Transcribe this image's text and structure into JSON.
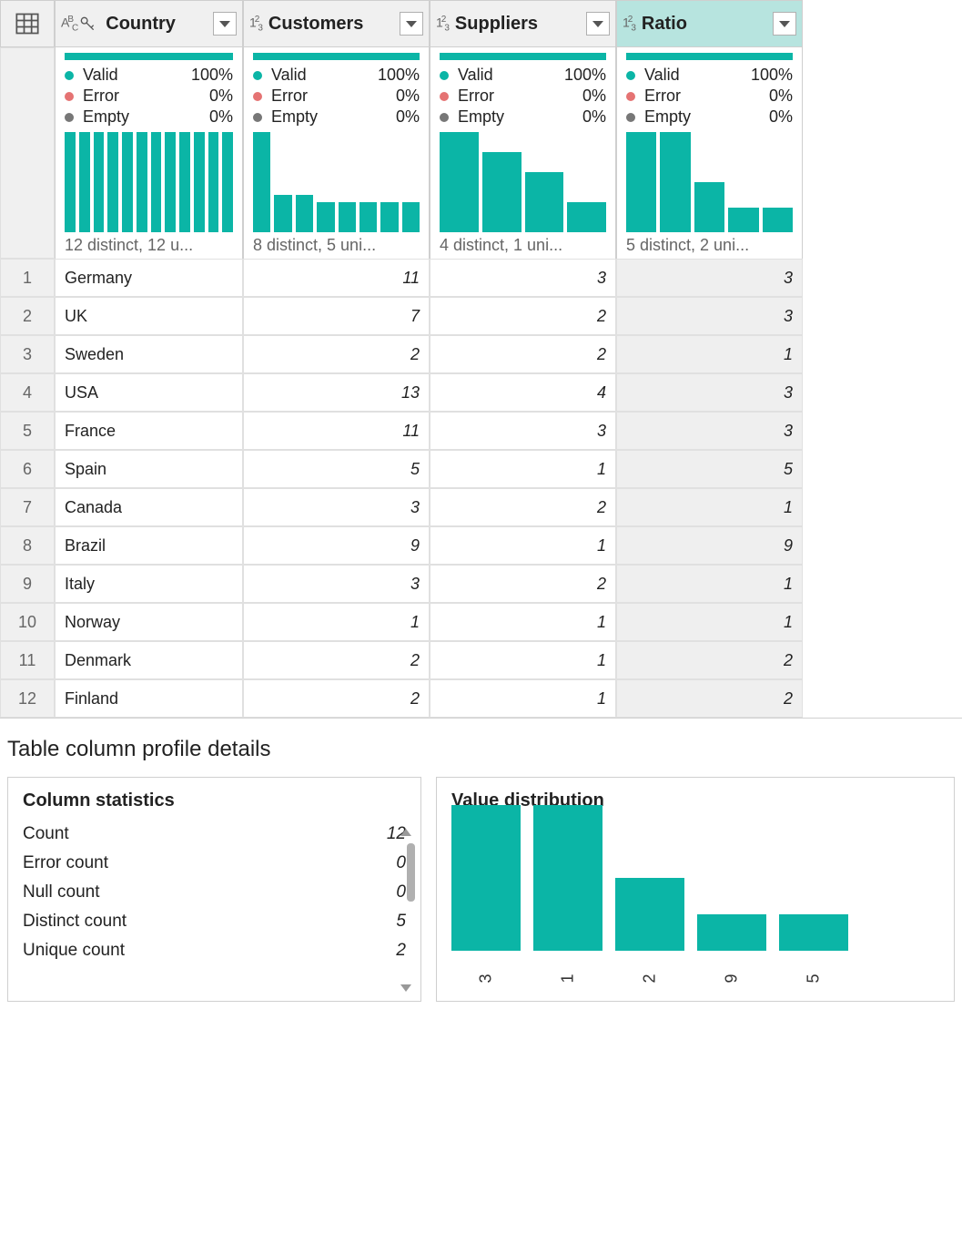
{
  "colors": {
    "accent": "#0bb5a6",
    "header_bg": "#f0f0f0",
    "header_selected_bg": "#b7e4df",
    "cell_selected_bg": "#efefef",
    "border": "#cfcfcf",
    "error_dot": "#e57373",
    "empty_dot": "#777777"
  },
  "columns": [
    {
      "name": "Country",
      "type": "text-key",
      "selected": false,
      "quality": {
        "valid_label": "Valid",
        "valid_pct": "100%",
        "error_label": "Error",
        "error_pct": "0%",
        "empty_label": "Empty",
        "empty_pct": "0%"
      },
      "mini_bars": [
        100,
        100,
        100,
        100,
        100,
        100,
        100,
        100,
        100,
        100,
        100,
        100
      ],
      "distinct_text": "12 distinct, 12 u..."
    },
    {
      "name": "Customers",
      "type": "number",
      "selected": false,
      "quality": {
        "valid_label": "Valid",
        "valid_pct": "100%",
        "error_label": "Error",
        "error_pct": "0%",
        "empty_label": "Empty",
        "empty_pct": "0%"
      },
      "mini_bars": [
        100,
        37,
        37,
        30,
        30,
        30,
        30,
        30
      ],
      "distinct_text": "8 distinct, 5 uni..."
    },
    {
      "name": "Suppliers",
      "type": "number",
      "selected": false,
      "quality": {
        "valid_label": "Valid",
        "valid_pct": "100%",
        "error_label": "Error",
        "error_pct": "0%",
        "empty_label": "Empty",
        "empty_pct": "0%"
      },
      "mini_bars": [
        100,
        80,
        60,
        30
      ],
      "distinct_text": "4 distinct, 1 uni..."
    },
    {
      "name": "Ratio",
      "type": "number",
      "selected": true,
      "quality": {
        "valid_label": "Valid",
        "valid_pct": "100%",
        "error_label": "Error",
        "error_pct": "0%",
        "empty_label": "Empty",
        "empty_pct": "0%"
      },
      "mini_bars": [
        100,
        100,
        50,
        25,
        25
      ],
      "distinct_text": "5 distinct, 2 uni..."
    }
  ],
  "rows": [
    {
      "idx": "1",
      "Country": "Germany",
      "Customers": "11",
      "Suppliers": "3",
      "Ratio": "3"
    },
    {
      "idx": "2",
      "Country": "UK",
      "Customers": "7",
      "Suppliers": "2",
      "Ratio": "3"
    },
    {
      "idx": "3",
      "Country": "Sweden",
      "Customers": "2",
      "Suppliers": "2",
      "Ratio": "1"
    },
    {
      "idx": "4",
      "Country": "USA",
      "Customers": "13",
      "Suppliers": "4",
      "Ratio": "3"
    },
    {
      "idx": "5",
      "Country": "France",
      "Customers": "11",
      "Suppliers": "3",
      "Ratio": "3"
    },
    {
      "idx": "6",
      "Country": "Spain",
      "Customers": "5",
      "Suppliers": "1",
      "Ratio": "5"
    },
    {
      "idx": "7",
      "Country": "Canada",
      "Customers": "3",
      "Suppliers": "2",
      "Ratio": "1"
    },
    {
      "idx": "8",
      "Country": "Brazil",
      "Customers": "9",
      "Suppliers": "1",
      "Ratio": "9"
    },
    {
      "idx": "9",
      "Country": "Italy",
      "Customers": "3",
      "Suppliers": "2",
      "Ratio": "1"
    },
    {
      "idx": "10",
      "Country": "Norway",
      "Customers": "1",
      "Suppliers": "1",
      "Ratio": "1"
    },
    {
      "idx": "11",
      "Country": "Denmark",
      "Customers": "2",
      "Suppliers": "1",
      "Ratio": "2"
    },
    {
      "idx": "12",
      "Country": "Finland",
      "Customers": "2",
      "Suppliers": "1",
      "Ratio": "2"
    }
  ],
  "profile": {
    "title": "Table column profile details",
    "stats_title": "Column statistics",
    "dist_title": "Value distribution",
    "stats": [
      {
        "label": "Count",
        "value": "12"
      },
      {
        "label": "Error count",
        "value": "0"
      },
      {
        "label": "Null count",
        "value": "0"
      },
      {
        "label": "Distinct count",
        "value": "5"
      },
      {
        "label": "Unique count",
        "value": "2"
      }
    ],
    "distribution": [
      {
        "label": "3",
        "height_pct": 100
      },
      {
        "label": "1",
        "height_pct": 100
      },
      {
        "label": "2",
        "height_pct": 50
      },
      {
        "label": "9",
        "height_pct": 25
      },
      {
        "label": "5",
        "height_pct": 25
      }
    ]
  }
}
